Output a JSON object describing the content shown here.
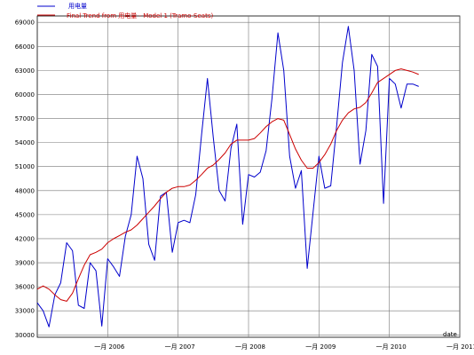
{
  "chart_data": {
    "type": "line",
    "legend": {
      "placement": "top-left",
      "entries": [
        "用电量",
        "Final Trend from 用电量 - Model 1 (Tramo-Seats)"
      ]
    },
    "xlabel": "date",
    "x_ticks": [
      "一月 2006",
      "一月 2007",
      "一月 2008",
      "一月 2009",
      "一月 2010",
      "一月 2011"
    ],
    "y_ticks": [
      30000,
      33000,
      36000,
      39000,
      42000,
      45000,
      48000,
      51000,
      54000,
      57000,
      60000,
      63000,
      66000,
      69000
    ],
    "y_tick_labels": [
      "30000",
      "33000",
      "36000",
      "39000",
      "42000",
      "45000",
      "48000",
      "51000",
      "54000",
      "57000",
      "60000",
      "63000",
      "66000",
      "69000"
    ],
    "ylim": [
      29700,
      69800
    ],
    "xlim": [
      2005.0,
      2011.0
    ],
    "grid": true,
    "series": [
      {
        "name": "用电量",
        "color": "#0000cc",
        "x": [
          2005.0,
          2005.083,
          2005.167,
          2005.25,
          2005.333,
          2005.417,
          2005.5,
          2005.583,
          2005.667,
          2005.75,
          2005.833,
          2005.917,
          2006.0,
          2006.083,
          2006.167,
          2006.25,
          2006.333,
          2006.417,
          2006.5,
          2006.583,
          2006.667,
          2006.75,
          2006.833,
          2006.917,
          2007.0,
          2007.083,
          2007.167,
          2007.25,
          2007.333,
          2007.417,
          2007.5,
          2007.583,
          2007.667,
          2007.75,
          2007.833,
          2007.917,
          2008.0,
          2008.083,
          2008.167,
          2008.25,
          2008.333,
          2008.417,
          2008.5,
          2008.583,
          2008.667,
          2008.75,
          2008.833,
          2008.917,
          2009.0,
          2009.083,
          2009.167,
          2009.25,
          2009.333,
          2009.417,
          2009.5,
          2009.583,
          2009.667,
          2009.75,
          2009.833,
          2009.917,
          2010.0,
          2010.083,
          2010.167,
          2010.25,
          2010.333,
          2010.417
        ],
        "values": [
          34000,
          33000,
          31000,
          35000,
          36500,
          41500,
          40500,
          33700,
          33300,
          39000,
          38000,
          31100,
          39500,
          38500,
          37300,
          42300,
          45000,
          52300,
          49500,
          41300,
          39300,
          47300,
          47800,
          40300,
          44000,
          44300,
          44000,
          47500,
          55000,
          62000,
          54600,
          48000,
          46700,
          53300,
          56300,
          43800,
          50000,
          49700,
          50300,
          53000,
          59500,
          67700,
          63000,
          52300,
          48300,
          50500,
          38300,
          45300,
          52300,
          48300,
          48600,
          56000,
          64000,
          68500,
          63000,
          51300,
          55500,
          65000,
          63500,
          46400,
          62000,
          61300,
          58300,
          61300,
          61300,
          61000
        ],
        "trimmed_to_2010_42": true
      },
      {
        "name": "Final Trend from 用电量 - Model 1 (Tramo-Seats)",
        "color": "#cc0000",
        "x": [
          2005.0,
          2005.083,
          2005.167,
          2005.25,
          2005.333,
          2005.417,
          2005.5,
          2005.583,
          2005.667,
          2005.75,
          2005.833,
          2005.917,
          2006.0,
          2006.083,
          2006.167,
          2006.25,
          2006.333,
          2006.417,
          2006.5,
          2006.583,
          2006.667,
          2006.75,
          2006.833,
          2006.917,
          2007.0,
          2007.083,
          2007.167,
          2007.25,
          2007.333,
          2007.417,
          2007.5,
          2007.583,
          2007.667,
          2007.75,
          2007.833,
          2007.917,
          2008.0,
          2008.083,
          2008.167,
          2008.25,
          2008.333,
          2008.417,
          2008.5,
          2008.583,
          2008.667,
          2008.75,
          2008.833,
          2008.917,
          2009.0,
          2009.083,
          2009.167,
          2009.25,
          2009.333,
          2009.417,
          2009.5,
          2009.583,
          2009.667,
          2009.75,
          2009.833,
          2009.917,
          2010.0,
          2010.083,
          2010.167,
          2010.25,
          2010.333,
          2010.417
        ],
        "values": [
          35700,
          36100,
          35700,
          35000,
          34400,
          34200,
          35200,
          37000,
          38700,
          40000,
          40300,
          40700,
          41500,
          42000,
          42400,
          42800,
          43100,
          43700,
          44500,
          45300,
          46100,
          47000,
          47800,
          48300,
          48500,
          48500,
          48700,
          49300,
          50000,
          50800,
          51200,
          51900,
          52700,
          53800,
          54300,
          54300,
          54300,
          54500,
          55200,
          56000,
          56600,
          57000,
          56800,
          55000,
          53200,
          51800,
          50800,
          50800,
          51500,
          52500,
          53800,
          55500,
          56800,
          57700,
          58200,
          58400,
          59000,
          60200,
          61500,
          62000,
          62500,
          63000,
          63200,
          63000,
          62800,
          62500
        ]
      }
    ]
  }
}
